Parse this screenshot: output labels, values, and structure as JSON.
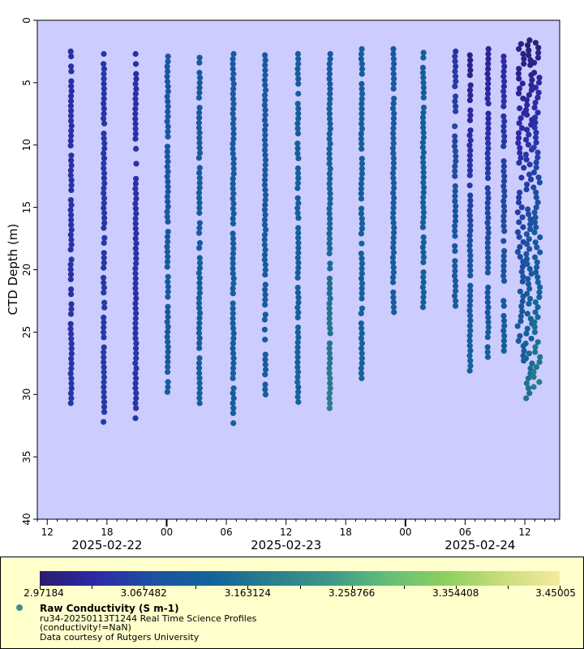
{
  "chart_data": {
    "type": "scatter",
    "title": "",
    "ylabel": "CTD Depth (m)",
    "xlabel": "",
    "ylim": [
      0,
      40
    ],
    "y_inverted": true,
    "y_ticks": [
      0,
      5,
      10,
      15,
      20,
      25,
      30,
      35,
      40
    ],
    "x_range_hours": [
      -1,
      51.5
    ],
    "x_origin": "2025-02-22T12:00",
    "x_ticks": [
      {
        "hour": 0,
        "label": "12"
      },
      {
        "hour": 6,
        "label": "18"
      },
      {
        "hour": 12,
        "label": "00"
      },
      {
        "hour": 18,
        "label": "06"
      },
      {
        "hour": 24,
        "label": "12"
      },
      {
        "hour": 30,
        "label": "18"
      },
      {
        "hour": 36,
        "label": "00"
      },
      {
        "hour": 42,
        "label": "06"
      },
      {
        "hour": 48,
        "label": "12"
      }
    ],
    "date_labels": [
      {
        "hour": 6,
        "label": "2025-02-22"
      },
      {
        "hour": 24,
        "label": "2025-02-23"
      },
      {
        "hour": 43.5,
        "label": "2025-02-24"
      }
    ],
    "colorbar": {
      "label": "Raw Conductivity (S m-1)",
      "min": 2.97184,
      "max": 3.45005,
      "tick_labels": [
        "2.97184",
        "3.067482",
        "3.163124",
        "3.258766",
        "3.354408",
        "3.45005"
      ],
      "stops": [
        "#2a1d6e",
        "#2c2aa8",
        "#1c52a0",
        "#12649a",
        "#2a7f8c",
        "#3d968a",
        "#62be78",
        "#8ccf60",
        "#c8dd7a",
        "#f5e9a0"
      ]
    },
    "profiles": [
      {
        "hour": 2.4,
        "depth_top": 2.5,
        "depth_bottom": 30.7,
        "cond_top": 3.03,
        "cond_bottom": 3.04
      },
      {
        "hour": 5.7,
        "depth_top": 2.7,
        "depth_bottom": 32.2,
        "cond_top": 3.04,
        "cond_bottom": 3.05
      },
      {
        "hour": 8.9,
        "depth_top": 2.7,
        "depth_bottom": 31.9,
        "cond_top": 3.03,
        "cond_bottom": 3.04
      },
      {
        "hour": 12.1,
        "depth_top": 2.9,
        "depth_bottom": 29.8,
        "cond_top": 3.09,
        "cond_bottom": 3.11
      },
      {
        "hour": 15.3,
        "depth_top": 3.0,
        "depth_bottom": 30.7,
        "cond_top": 3.1,
        "cond_bottom": 3.12
      },
      {
        "hour": 18.7,
        "depth_top": 2.7,
        "depth_bottom": 32.3,
        "cond_top": 3.1,
        "cond_bottom": 3.12
      },
      {
        "hour": 21.9,
        "depth_top": 2.8,
        "depth_bottom": 30.0,
        "cond_top": 3.1,
        "cond_bottom": 3.11
      },
      {
        "hour": 25.2,
        "depth_top": 2.7,
        "depth_bottom": 30.6,
        "cond_top": 3.11,
        "cond_bottom": 3.13
      },
      {
        "hour": 28.4,
        "depth_top": 2.7,
        "depth_bottom": 31.1,
        "cond_top": 3.1,
        "cond_bottom": 3.18
      },
      {
        "hour": 31.6,
        "depth_top": 2.3,
        "depth_bottom": 28.7,
        "cond_top": 3.11,
        "cond_bottom": 3.13
      },
      {
        "hour": 34.8,
        "depth_top": 2.3,
        "depth_bottom": 23.4,
        "cond_top": 3.1,
        "cond_bottom": 3.11
      },
      {
        "hour": 37.8,
        "depth_top": 2.6,
        "depth_bottom": 23.0,
        "cond_top": 3.11,
        "cond_bottom": 3.12
      },
      {
        "hour": 41.0,
        "depth_top": 2.5,
        "depth_bottom": 22.9,
        "cond_top": 3.04,
        "cond_bottom": 3.11
      },
      {
        "hour": 42.5,
        "depth_top": 2.8,
        "depth_bottom": 28.1,
        "cond_top": 2.99,
        "cond_bottom": 3.13
      },
      {
        "hour": 44.3,
        "depth_top": 2.3,
        "depth_bottom": 27.0,
        "cond_top": 3.0,
        "cond_bottom": 3.12
      },
      {
        "hour": 45.9,
        "depth_top": 2.9,
        "depth_bottom": 26.5,
        "cond_top": 3.02,
        "cond_bottom": 3.11
      },
      {
        "hour": 47.6,
        "depth_top": 1.9,
        "depth_bottom": 27.3,
        "cond_top": 2.99,
        "cond_bottom": 3.11
      },
      {
        "hour": 48.4,
        "depth_top": 1.6,
        "depth_bottom": 30.3,
        "cond_top": 2.98,
        "cond_bottom": 3.16
      },
      {
        "hour": 49.2,
        "depth_top": 1.8,
        "depth_bottom": 29.4,
        "cond_top": 2.99,
        "cond_bottom": 3.18
      }
    ]
  },
  "legend": {
    "title": "Raw Conductivity (S m-1)",
    "line1": "ru34-20250113T1244 Real Time Science Profiles",
    "line2": "(conductivity!=NaN)",
    "line3": "Data courtesy of Rutgers University",
    "marker_color": "#3d8f8c"
  },
  "colors": {
    "plot_bg": "#ccccff",
    "legend_bg": "#ffffcc"
  }
}
